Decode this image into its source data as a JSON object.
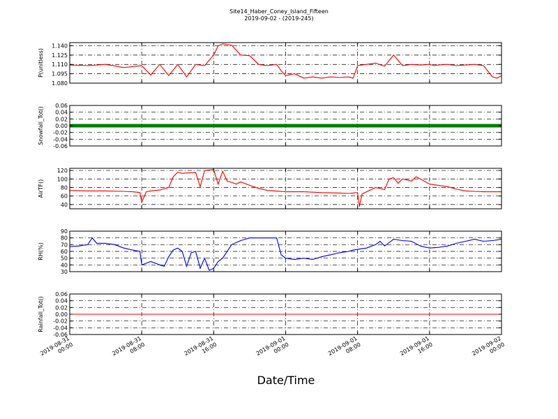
{
  "title": "Site14_Haber_Coney_Island_Fifteen",
  "subtitle": "2019-09-02 - (2019-245)",
  "xlabel": "Date/Time",
  "x_ticks": [
    [
      "2019-08-31",
      "00:00"
    ],
    [
      "2019-08-31",
      "08:00"
    ],
    [
      "2019-08-31",
      "16:00"
    ],
    [
      "2019-09-01",
      "00:00"
    ],
    [
      "2019-09-01",
      "08:00"
    ],
    [
      "2019-09-01",
      "16:00"
    ],
    [
      "2019-09-02",
      "00:00"
    ]
  ],
  "chart_data": [
    {
      "type": "line",
      "ylabel": "P(unitless)",
      "ylim": [
        1.08,
        1.145
      ],
      "yticks": [
        "1.140",
        "1.125",
        "1.110",
        "1.095",
        "1.080"
      ],
      "ytick_values": [
        1.14,
        1.125,
        1.11,
        1.095,
        1.08
      ],
      "grid": true,
      "series": [
        {
          "color": "#ff0000",
          "x_hours": [
            0,
            2,
            4,
            6,
            8,
            9,
            10,
            11,
            12,
            13,
            14,
            15,
            16,
            16.5,
            17,
            18,
            19,
            20,
            21,
            22,
            23,
            23.5,
            24,
            25,
            26,
            27,
            28,
            29,
            30,
            31,
            31.5,
            32,
            33,
            34,
            35,
            36,
            37,
            38,
            39,
            40,
            40.5,
            41,
            42,
            43,
            44,
            45,
            46,
            47,
            47.5,
            48
          ],
          "y": [
            1.109,
            1.108,
            1.11,
            1.105,
            1.108,
            1.093,
            1.11,
            1.092,
            1.11,
            1.09,
            1.11,
            1.108,
            1.125,
            1.14,
            1.143,
            1.141,
            1.125,
            1.124,
            1.11,
            1.108,
            1.11,
            1.1,
            1.092,
            1.095,
            1.088,
            1.09,
            1.088,
            1.09,
            1.089,
            1.09,
            1.088,
            1.108,
            1.11,
            1.112,
            1.107,
            1.125,
            1.108,
            1.11,
            1.109,
            1.11,
            1.108,
            1.109,
            1.11,
            1.108,
            1.109,
            1.11,
            1.108,
            1.09,
            1.088,
            1.092
          ]
        }
      ]
    },
    {
      "type": "scatter",
      "ylabel": "Snowfall_Tot()",
      "ylim": [
        -0.06,
        0.06
      ],
      "yticks": [
        "0.06",
        "0.04",
        "0.02",
        "0.00",
        "-0.02",
        "-0.04",
        "-0.06"
      ],
      "ytick_values": [
        0.06,
        0.04,
        0.02,
        0.0,
        -0.02,
        -0.04,
        -0.06
      ],
      "grid": true,
      "series": [
        {
          "color": "#008000",
          "x_hours": [
            0,
            48
          ],
          "y": [
            0,
            0
          ]
        }
      ]
    },
    {
      "type": "line",
      "ylabel": "AirTF()",
      "ylim": [
        30,
        125
      ],
      "yticks": [
        "120",
        "100",
        "80",
        "60",
        "40"
      ],
      "ytick_values": [
        120,
        100,
        80,
        60,
        40
      ],
      "grid": true,
      "series": [
        {
          "color": "#ff0000",
          "x_hours": [
            0,
            2,
            4,
            6,
            7,
            7.8,
            8,
            8.5,
            9,
            10,
            11,
            11.5,
            12,
            12.5,
            13,
            14,
            14.5,
            15,
            16,
            16.5,
            17,
            17.5,
            18,
            18.5,
            19,
            20,
            21,
            22,
            24,
            26,
            28,
            30,
            31,
            32,
            32.2,
            32.5,
            33,
            34,
            35,
            35.5,
            36,
            36.5,
            37,
            38,
            38.5,
            39,
            40,
            41,
            42,
            43,
            44,
            45,
            46,
            47,
            48
          ],
          "y": [
            73,
            72,
            72,
            71,
            70,
            68,
            45,
            70,
            72,
            74,
            80,
            105,
            116,
            113,
            114,
            115,
            82,
            120,
            122,
            88,
            118,
            95,
            92,
            88,
            93,
            85,
            78,
            73,
            70,
            70,
            68,
            67,
            66,
            68,
            35,
            65,
            70,
            80,
            75,
            100,
            103,
            90,
            100,
            95,
            105,
            100,
            88,
            85,
            82,
            76,
            72,
            71,
            70,
            70,
            70
          ]
        }
      ]
    },
    {
      "type": "line",
      "ylabel": "RH(%)",
      "ylim": [
        30,
        90
      ],
      "yticks": [
        "90",
        "80",
        "70",
        "60",
        "50",
        "40",
        "30"
      ],
      "ytick_values": [
        90,
        80,
        70,
        60,
        50,
        40,
        30
      ],
      "grid": true,
      "series": [
        {
          "color": "#0000ff",
          "x_hours": [
            0,
            1,
            2,
            2.5,
            3,
            4,
            5,
            6,
            7,
            7.8,
            8,
            9,
            10,
            10.5,
            11,
            11.5,
            12,
            12.5,
            13,
            13.5,
            14,
            14.5,
            15,
            15.5,
            16,
            16.5,
            17,
            18,
            19,
            20,
            21,
            22,
            23,
            23.5,
            24,
            25,
            26,
            27,
            28,
            29,
            30,
            31,
            31.5,
            32,
            33,
            34,
            34.5,
            35,
            36,
            37,
            38,
            39,
            40,
            41,
            42,
            43,
            44,
            45,
            46,
            47,
            48
          ],
          "y": [
            67,
            68,
            70,
            80,
            72,
            72,
            70,
            65,
            62,
            60,
            40,
            45,
            40,
            38,
            52,
            62,
            65,
            60,
            38,
            58,
            60,
            35,
            50,
            32,
            35,
            45,
            50,
            70,
            76,
            80,
            80,
            80,
            80,
            55,
            50,
            48,
            50,
            48,
            52,
            55,
            58,
            60,
            62,
            63,
            65,
            70,
            75,
            68,
            78,
            76,
            75,
            68,
            65,
            66,
            68,
            72,
            75,
            78,
            75,
            76,
            78
          ]
        }
      ]
    },
    {
      "type": "line",
      "ylabel": "Rainfall_Tot()",
      "ylim": [
        -0.06,
        0.06
      ],
      "yticks": [
        "0.06",
        "0.04",
        "0.02",
        "0.00",
        "-0.02",
        "-0.04",
        "-0.06"
      ],
      "ytick_values": [
        0.06,
        0.04,
        0.02,
        0.0,
        -0.02,
        -0.04,
        -0.06
      ],
      "grid": true,
      "series": [
        {
          "color": "#ff0000",
          "x_hours": [
            0,
            48
          ],
          "y": [
            0,
            0
          ]
        }
      ]
    }
  ]
}
